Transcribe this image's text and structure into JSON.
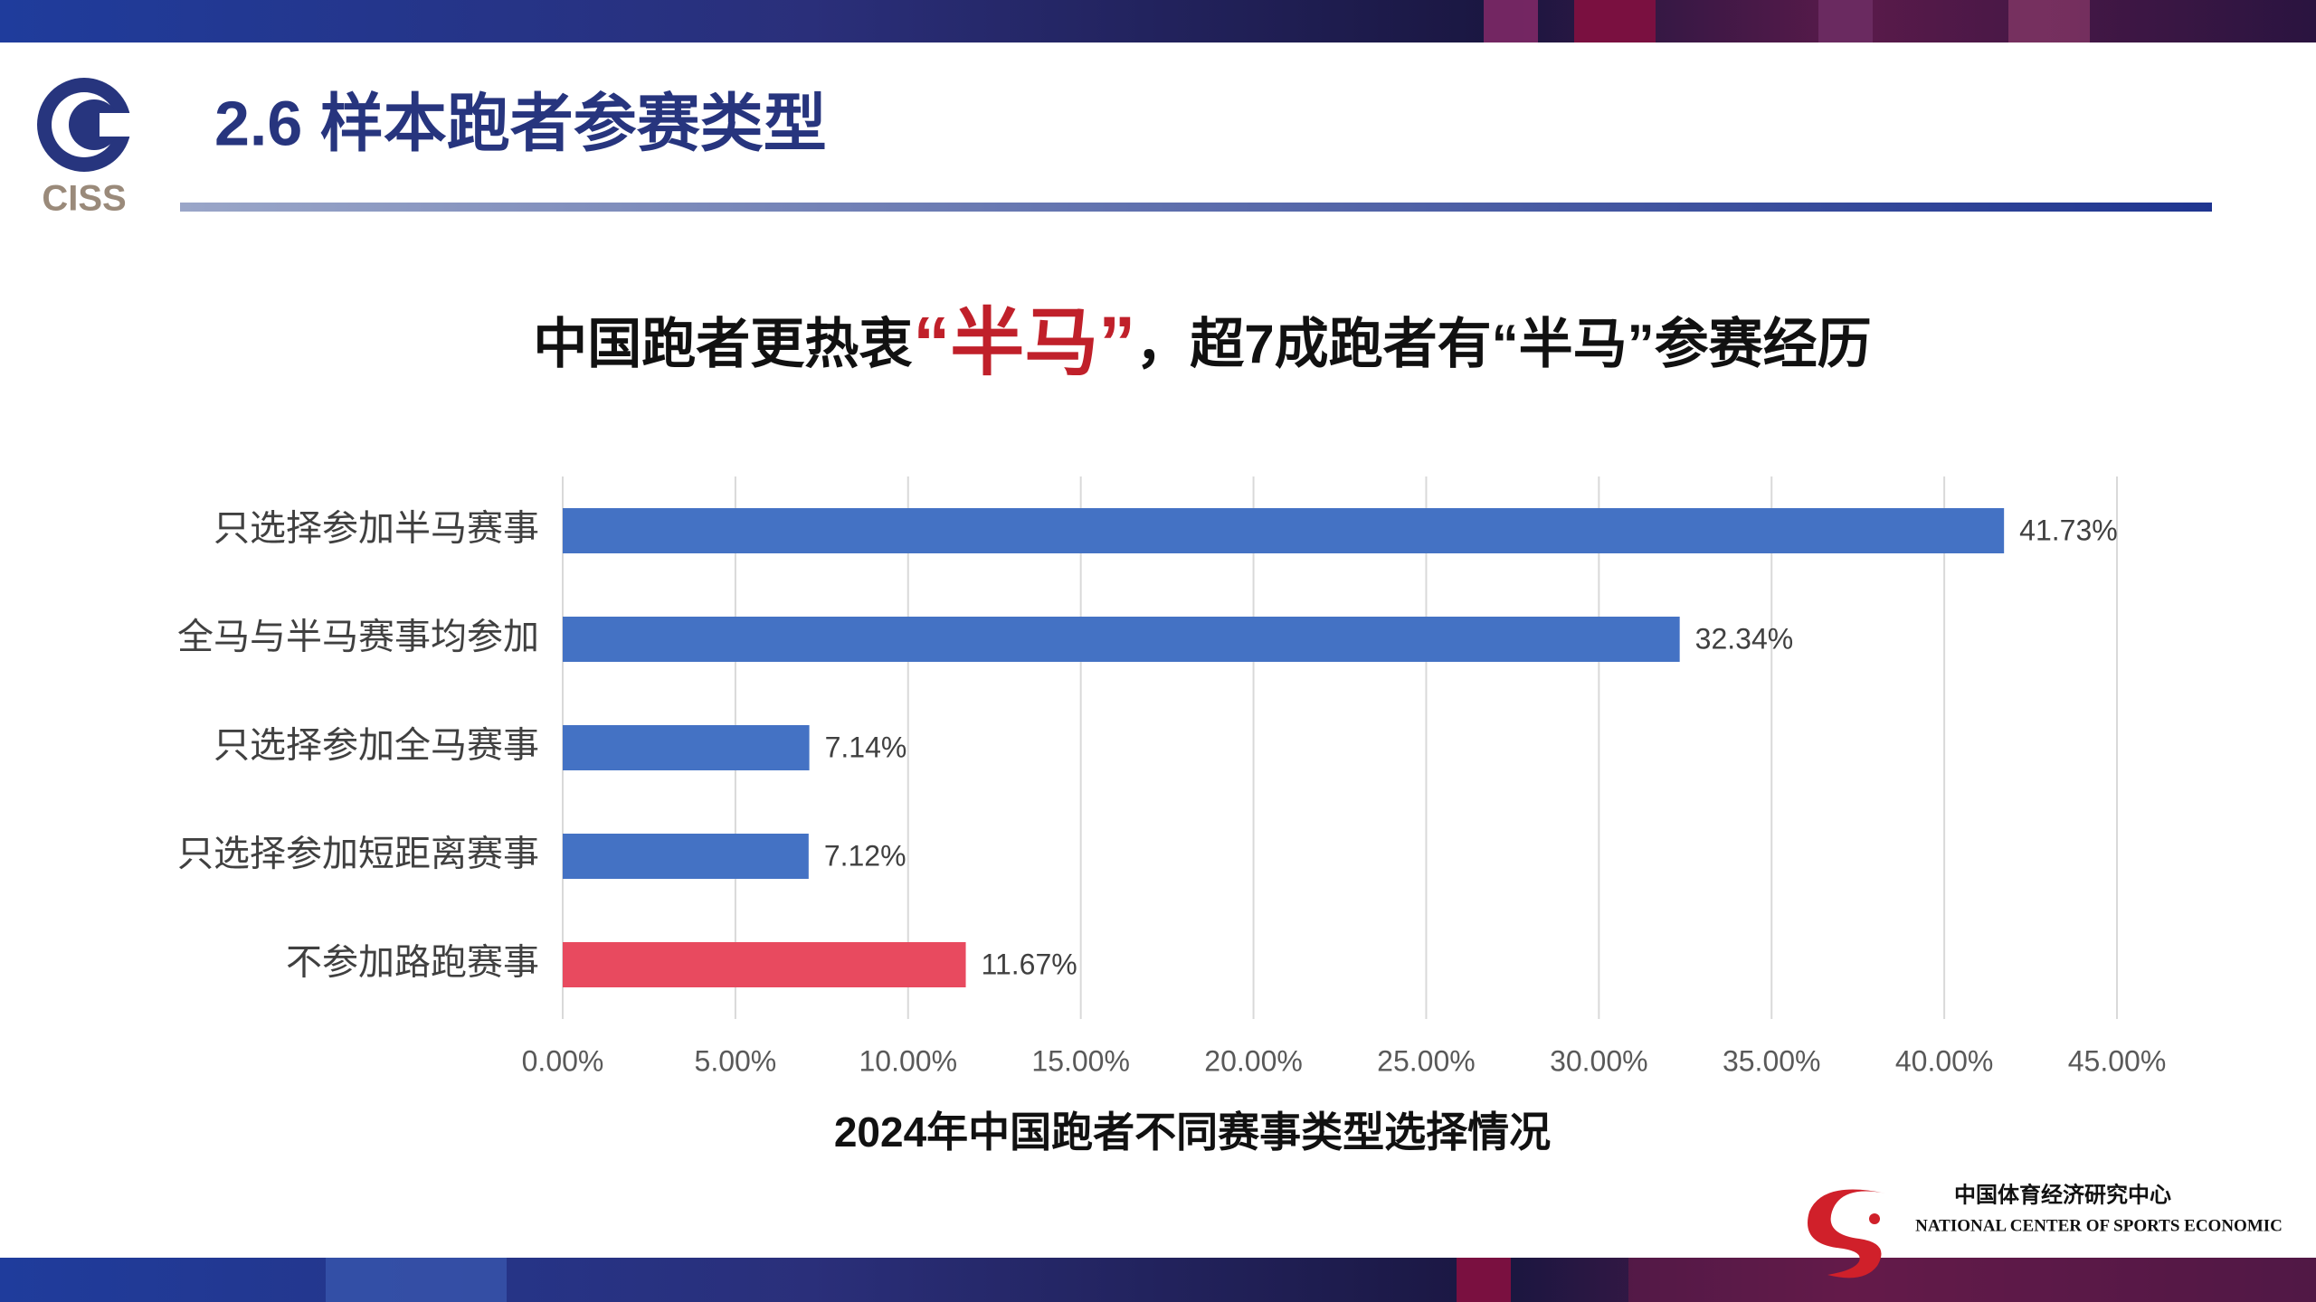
{
  "header": {
    "logo_text": "CISS",
    "title": "2.6 样本跑者参赛类型"
  },
  "headline": {
    "before": "中国跑者更热衷",
    "highlight": "“半马”",
    "after": "，超7成跑者有“半马”参赛经历"
  },
  "chart_data": {
    "type": "bar",
    "orientation": "horizontal",
    "title": "2024年中国跑者不同赛事类型选择情况",
    "categories": [
      "只选择参加半马赛事",
      "全马与半马赛事均参加",
      "只选择参加全马赛事",
      "只选择参加短距离赛事",
      "不参加路跑赛事"
    ],
    "values": [
      41.73,
      32.34,
      7.14,
      7.12,
      11.67
    ],
    "value_labels": [
      "41.73%",
      "32.34%",
      "7.14%",
      "7.12%",
      "11.67%"
    ],
    "colors": [
      "#4472c4",
      "#4472c4",
      "#4472c4",
      "#4472c4",
      "#e84a5f"
    ],
    "xlim": [
      0,
      45
    ],
    "xticks": [
      {
        "value": 0,
        "label": "0.00%"
      },
      {
        "value": 5,
        "label": "5.00%"
      },
      {
        "value": 10,
        "label": "10.00%"
      },
      {
        "value": 15,
        "label": "15.00%"
      },
      {
        "value": 20,
        "label": "20.00%"
      },
      {
        "value": 25,
        "label": "25.00%"
      },
      {
        "value": 30,
        "label": "30.00%"
      },
      {
        "value": 35,
        "label": "35.00%"
      },
      {
        "value": 40,
        "label": "40.00%"
      },
      {
        "value": 45,
        "label": "45.00%"
      }
    ],
    "grid": true
  },
  "footer": {
    "org_cn": "中国体育经济研究中心",
    "org_en": "NATIONAL CENTER OF SPORTS ECONOMIC"
  }
}
